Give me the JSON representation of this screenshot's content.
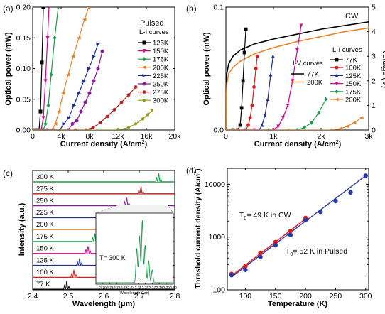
{
  "chart_data": [
    {
      "id": "a",
      "panel_label": "(a)",
      "type": "line",
      "note": "Pulsed",
      "legend_title": "L-I curves",
      "xlabel": "Current density (A/cm",
      "xlabel_sup": "2",
      "xlabel_end": ")",
      "ylabel": "Optical power (mW)",
      "xlim": [
        0,
        20000
      ],
      "ylim": [
        0,
        0.2
      ],
      "x_ticks": [
        0,
        4000,
        8000,
        12000,
        16000,
        20000
      ],
      "x_tick_labels": [
        "0",
        "4k",
        "8k",
        "12k",
        "16k",
        "20k"
      ],
      "y_ticks": [
        0,
        0.05,
        0.1,
        0.15,
        0.2
      ],
      "y_tick_labels": [
        "0.00",
        "0.05",
        "0.10",
        "0.15",
        "0.20"
      ],
      "series": [
        {
          "name": "125K",
          "color": "#000000",
          "marker": "square",
          "x": [
            0,
            300,
            600,
            900,
            1100,
            1300,
            1500
          ],
          "y": [
            0,
            0,
            0,
            0,
            0.03,
            0.11,
            0.2
          ]
        },
        {
          "name": "150K",
          "color": "#d4008a",
          "marker": "tri-down",
          "x": [
            0,
            400,
            800,
            1200,
            1500,
            1800,
            2100,
            2300
          ],
          "y": [
            0,
            0,
            0,
            0,
            0.02,
            0.08,
            0.15,
            0.2
          ]
        },
        {
          "name": "175K",
          "color": "#1a9a4a",
          "marker": "diamond",
          "x": [
            0,
            500,
            1000,
            1500,
            1800,
            2200,
            2600,
            3100,
            3600
          ],
          "y": [
            0,
            0,
            0,
            0,
            0.01,
            0.04,
            0.09,
            0.15,
            0.2
          ]
        },
        {
          "name": "200K",
          "color": "#e8822a",
          "marker": "tri-left",
          "x": [
            0,
            1000,
            2000,
            2700,
            3200,
            3700,
            4300,
            5000,
            5700,
            6500,
            7300,
            7900
          ],
          "y": [
            0,
            0,
            0,
            0,
            0.01,
            0.03,
            0.06,
            0.09,
            0.12,
            0.15,
            0.18,
            0.2
          ]
        },
        {
          "name": "225K",
          "color": "#1f2f8f",
          "marker": "tri-right",
          "x": [
            0,
            1500,
            3000,
            3800,
            4400,
            5100,
            5800,
            6500,
            7200,
            7900,
            8600,
            9200
          ],
          "y": [
            0,
            0,
            0,
            0,
            0.01,
            0.02,
            0.04,
            0.06,
            0.08,
            0.1,
            0.12,
            0.14
          ]
        },
        {
          "name": "250K",
          "color": "#8a1a9a",
          "marker": "circle",
          "x": [
            0,
            2000,
            4000,
            5000,
            5600,
            6200,
            6800,
            7400,
            8000,
            8600,
            9200,
            9800
          ],
          "y": [
            0,
            0,
            0,
            0,
            0.01,
            0.015,
            0.03,
            0.045,
            0.06,
            0.08,
            0.1,
            0.128
          ]
        },
        {
          "name": "275K",
          "color": "#b81818",
          "marker": "star",
          "x": [
            0,
            3000,
            6000,
            7500,
            8500,
            9500,
            10500,
            11500,
            12500,
            13500,
            14500
          ],
          "y": [
            0,
            0,
            0,
            0,
            0.004,
            0.012,
            0.022,
            0.033,
            0.045,
            0.057,
            0.07
          ]
        },
        {
          "name": "300K",
          "color": "#9a9a1a",
          "marker": "pentagon",
          "x": [
            0,
            4000,
            8000,
            12000,
            13500,
            14500,
            15500,
            16200,
            16800
          ],
          "y": [
            0,
            0,
            0,
            0,
            0.004,
            0.01,
            0.018,
            0.025,
            0.032
          ]
        }
      ]
    },
    {
      "id": "b",
      "panel_label": "(b)",
      "type": "line",
      "note": "CW",
      "legend_title": "L-I curves",
      "legend2_title": "I-V curves",
      "xlabel": "Current density (A/cm",
      "xlabel_sup": "2",
      "xlabel_end": ")",
      "ylabel": "Optical power (mW)",
      "y2label": "Voltage (V)",
      "xlim": [
        0,
        3000
      ],
      "ylim": [
        0,
        0.1
      ],
      "y2lim": [
        0,
        5
      ],
      "x_ticks": [
        0,
        1000,
        2000,
        3000
      ],
      "x_tick_labels": [
        "0",
        "1k",
        "2k",
        "3k"
      ],
      "y_ticks": [
        0,
        0.1
      ],
      "y_tick_labels": [
        "0.0",
        "0.1"
      ],
      "y2_ticks": [
        0,
        1,
        2,
        3,
        4,
        5
      ],
      "y2_tick_labels": [
        "0",
        "1",
        "2",
        "3",
        "4",
        "5"
      ],
      "series": [
        {
          "name": "77K",
          "color": "#000000",
          "marker": "square",
          "x": [
            0,
            150,
            250,
            300,
            330,
            360,
            390,
            420
          ],
          "y": [
            0,
            0,
            0,
            0.004,
            0.018,
            0.04,
            0.063,
            0.082
          ]
        },
        {
          "name": "100K",
          "color": "#e01a1a",
          "marker": "circle",
          "x": [
            0,
            250,
            420,
            470,
            510,
            550,
            590,
            630,
            660
          ],
          "y": [
            0,
            0,
            0,
            0.004,
            0.01,
            0.02,
            0.035,
            0.05,
            0.06
          ]
        },
        {
          "name": "125K",
          "color": "#1f2f8f",
          "marker": "tri-up",
          "x": [
            0,
            400,
            700,
            760,
            820,
            880,
            940,
            990
          ],
          "y": [
            0,
            0,
            0,
            0.004,
            0.012,
            0.025,
            0.045,
            0.06
          ]
        },
        {
          "name": "150K",
          "color": "#d4008a",
          "marker": "tri-down",
          "x": [
            0,
            600,
            1000,
            1100,
            1200,
            1300,
            1400,
            1500,
            1580
          ],
          "y": [
            0,
            0,
            0,
            0.003,
            0.01,
            0.02,
            0.04,
            0.065,
            0.085
          ]
        },
        {
          "name": "175K",
          "color": "#1a9a4a",
          "marker": "diamond",
          "x": [
            0,
            900,
            1500,
            1650,
            1800,
            1950,
            2100
          ],
          "y": [
            0,
            0,
            0,
            0.002,
            0.006,
            0.014,
            0.025
          ]
        },
        {
          "name": "200K",
          "color": "#e8822a",
          "marker": "tri-left",
          "x": [
            0,
            1300,
            2200,
            2400,
            2550,
            2700,
            2850
          ],
          "y": [
            0,
            0,
            0,
            0.001,
            0.003,
            0.006,
            0.01
          ]
        }
      ],
      "iv_series": [
        {
          "name": "77K",
          "color": "#000000",
          "x": [
            0,
            5,
            20,
            60,
            150,
            300,
            600,
            1000,
            1500,
            2000,
            2500,
            3000
          ],
          "v": [
            0,
            1.5,
            2.3,
            2.7,
            3.0,
            3.25,
            3.5,
            3.7,
            3.9,
            4.1,
            4.25,
            4.4
          ]
        },
        {
          "name": "200K",
          "color": "#e8822a",
          "x": [
            0,
            5,
            20,
            60,
            150,
            300,
            600,
            1000,
            1500,
            2000,
            2500,
            3000
          ],
          "v": [
            0,
            1.2,
            1.9,
            2.3,
            2.55,
            2.8,
            3.1,
            3.35,
            3.6,
            3.8,
            4.0,
            4.15
          ]
        }
      ]
    },
    {
      "id": "c",
      "panel_label": "(c)",
      "type": "line",
      "xlabel": "Wavelength (",
      "xlabel_mu": "μ",
      "xlabel_end": "m)",
      "ylabel": "Intensity (a.u.)",
      "xlim": [
        2.4,
        2.8
      ],
      "x_ticks": [
        2.4,
        2.5,
        2.6,
        2.7,
        2.8
      ],
      "x_tick_labels": [
        "2.4",
        "2.5",
        "2.6",
        "2.7",
        "2.8"
      ],
      "spectra": [
        {
          "name": "77 K",
          "color": "#000000",
          "peak": 2.496,
          "height": 0.85
        },
        {
          "name": "100 K",
          "color": "#e01a1a",
          "peak": 2.516,
          "height": 0.75
        },
        {
          "name": "125 K",
          "color": "#1f2f8f",
          "peak": 2.532,
          "height": 0.7
        },
        {
          "name": "150 K",
          "color": "#d4008a",
          "peak": 2.556,
          "height": 0.75
        },
        {
          "name": "175 K",
          "color": "#1a9a4a",
          "peak": 2.575,
          "height": 0.8
        },
        {
          "name": "200 K",
          "color": "#e8822a",
          "peak": 2.605,
          "height": 0.75
        },
        {
          "name": "225 K",
          "color": "#1f2f8f",
          "peak": 2.63,
          "height": 0.8
        },
        {
          "name": "250 K",
          "color": "#8a1a9a",
          "peak": 2.665,
          "height": 0.8
        },
        {
          "name": "275 K",
          "color": "#b81818",
          "peak": 2.705,
          "height": 0.75
        },
        {
          "name": "300 K",
          "color": "#1a9a4a",
          "peak": 2.755,
          "height": 0.85
        }
      ],
      "inset": {
        "label": "T= 300 K",
        "xlabel": "Wavelength (",
        "xlabel_mu": "μ",
        "xlabel_end": "m)",
        "xlim": [
          2.69,
          2.8
        ],
        "x_ticks": [
          2.7,
          2.71,
          2.72,
          2.73,
          2.74,
          2.75,
          2.76,
          2.77,
          2.78,
          2.79,
          2.8
        ],
        "x_tick_labels": [
          "2.70",
          "2.71",
          "2.72",
          "2.73",
          "2.74",
          "2.75",
          "2.76",
          "2.77",
          "2.78",
          "2.79",
          "2.80"
        ],
        "color": "#1a9a4a",
        "peaks": [
          {
            "x": 2.748,
            "h": 0.55
          },
          {
            "x": 2.752,
            "h": 0.75
          },
          {
            "x": 2.756,
            "h": 1.0
          },
          {
            "x": 2.76,
            "h": 0.6
          },
          {
            "x": 2.765,
            "h": 0.35
          },
          {
            "x": 2.77,
            "h": 0.2
          }
        ]
      }
    },
    {
      "id": "d",
      "panel_label": "(d)",
      "type": "scatter",
      "xlabel": "Temperature (K)",
      "ylabel": "Threshold current density (A/cm",
      "ylabel_sup": "2",
      "ylabel_end": ")",
      "xlim": [
        70,
        305
      ],
      "ylim": [
        100,
        20000
      ],
      "y_scale": "log",
      "x_ticks": [
        100,
        150,
        200,
        250,
        300
      ],
      "x_tick_labels": [
        "100",
        "150",
        "200",
        "250",
        "300"
      ],
      "y_ticks": [
        100,
        1000,
        10000
      ],
      "y_tick_labels": [
        "100",
        "1000",
        "10000"
      ],
      "annotation_cw_pre": "T",
      "annotation_cw_sub": "0",
      "annotation_cw_post": "= 49 K in CW",
      "annotation_pulsed_pre": "T",
      "annotation_pulsed_sub": "0",
      "annotation_pulsed_post": "= 52 K in Pulsed",
      "series": [
        {
          "name": "CW",
          "color": "#e01a1a",
          "x": [
            77,
            100,
            125,
            150,
            175,
            200
          ],
          "y": [
            200,
            280,
            500,
            800,
            1300,
            2300
          ]
        },
        {
          "name": "Pulsed",
          "color": "#2a3aa8",
          "x": [
            77,
            100,
            125,
            150,
            175,
            200,
            225,
            250,
            275,
            300
          ],
          "y": [
            190,
            240,
            420,
            700,
            1100,
            2100,
            3000,
            4800,
            7000,
            14500
          ]
        }
      ],
      "fits": [
        {
          "name": "CW fit",
          "color": "#e01a1a",
          "x": [
            77,
            205
          ],
          "y": [
            185,
            2450
          ]
        },
        {
          "name": "Pulsed fit",
          "color": "#2a3aa8",
          "x": [
            77,
            300
          ],
          "y": [
            175,
            14500
          ]
        }
      ]
    }
  ]
}
